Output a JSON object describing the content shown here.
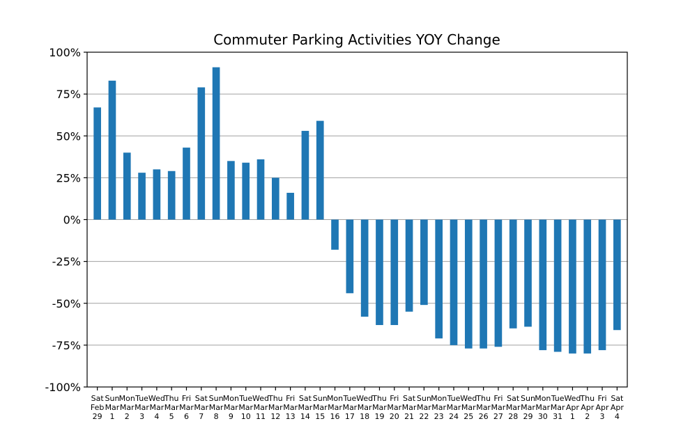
{
  "chart_data": {
    "type": "bar",
    "title": "Commuter Parking Activities YOY Change",
    "xlabel": "",
    "ylabel": "",
    "ylim": [
      -100,
      100
    ],
    "yticks": [
      -100,
      -75,
      -50,
      -25,
      0,
      25,
      50,
      75,
      100
    ],
    "ytick_labels": [
      "-100%",
      "-75%",
      "-50%",
      "-25%",
      "0%",
      "25%",
      "50%",
      "75%",
      "100%"
    ],
    "grid": true,
    "bar_color": "#1f77b4",
    "categories": [
      {
        "day": "Sat",
        "month": "Feb",
        "date": "29"
      },
      {
        "day": "Sun",
        "month": "Mar",
        "date": "1"
      },
      {
        "day": "Mon",
        "month": "Mar",
        "date": "2"
      },
      {
        "day": "Tue",
        "month": "Mar",
        "date": "3"
      },
      {
        "day": "Wed",
        "month": "Mar",
        "date": "4"
      },
      {
        "day": "Thu",
        "month": "Mar",
        "date": "5"
      },
      {
        "day": "Fri",
        "month": "Mar",
        "date": "6"
      },
      {
        "day": "Sat",
        "month": "Mar",
        "date": "7"
      },
      {
        "day": "Sun",
        "month": "Mar",
        "date": "8"
      },
      {
        "day": "Mon",
        "month": "Mar",
        "date": "9"
      },
      {
        "day": "Tue",
        "month": "Mar",
        "date": "10"
      },
      {
        "day": "Wed",
        "month": "Mar",
        "date": "11"
      },
      {
        "day": "Thu",
        "month": "Mar",
        "date": "12"
      },
      {
        "day": "Fri",
        "month": "Mar",
        "date": "13"
      },
      {
        "day": "Sat",
        "month": "Mar",
        "date": "14"
      },
      {
        "day": "Sun",
        "month": "Mar",
        "date": "15"
      },
      {
        "day": "Mon",
        "month": "Mar",
        "date": "16"
      },
      {
        "day": "Tue",
        "month": "Mar",
        "date": "17"
      },
      {
        "day": "Wed",
        "month": "Mar",
        "date": "18"
      },
      {
        "day": "Thu",
        "month": "Mar",
        "date": "19"
      },
      {
        "day": "Fri",
        "month": "Mar",
        "date": "20"
      },
      {
        "day": "Sat",
        "month": "Mar",
        "date": "21"
      },
      {
        "day": "Sun",
        "month": "Mar",
        "date": "22"
      },
      {
        "day": "Mon",
        "month": "Mar",
        "date": "23"
      },
      {
        "day": "Tue",
        "month": "Mar",
        "date": "24"
      },
      {
        "day": "Wed",
        "month": "Mar",
        "date": "25"
      },
      {
        "day": "Thu",
        "month": "Mar",
        "date": "26"
      },
      {
        "day": "Fri",
        "month": "Mar",
        "date": "27"
      },
      {
        "day": "Sat",
        "month": "Mar",
        "date": "28"
      },
      {
        "day": "Sun",
        "month": "Mar",
        "date": "29"
      },
      {
        "day": "Mon",
        "month": "Mar",
        "date": "30"
      },
      {
        "day": "Tue",
        "month": "Mar",
        "date": "31"
      },
      {
        "day": "Wed",
        "month": "Apr",
        "date": "1"
      },
      {
        "day": "Thu",
        "month": "Apr",
        "date": "2"
      },
      {
        "day": "Fri",
        "month": "Apr",
        "date": "3"
      },
      {
        "day": "Sat",
        "month": "Apr",
        "date": "4"
      }
    ],
    "values": [
      67,
      83,
      40,
      28,
      30,
      29,
      43,
      79,
      91,
      35,
      34,
      36,
      25,
      16,
      53,
      59,
      -18,
      -44,
      -58,
      -63,
      -63,
      -55,
      -51,
      -71,
      -75,
      -77,
      -77,
      -76,
      -65,
      -64,
      -78,
      -79,
      -80,
      -80,
      -78,
      -66
    ]
  }
}
